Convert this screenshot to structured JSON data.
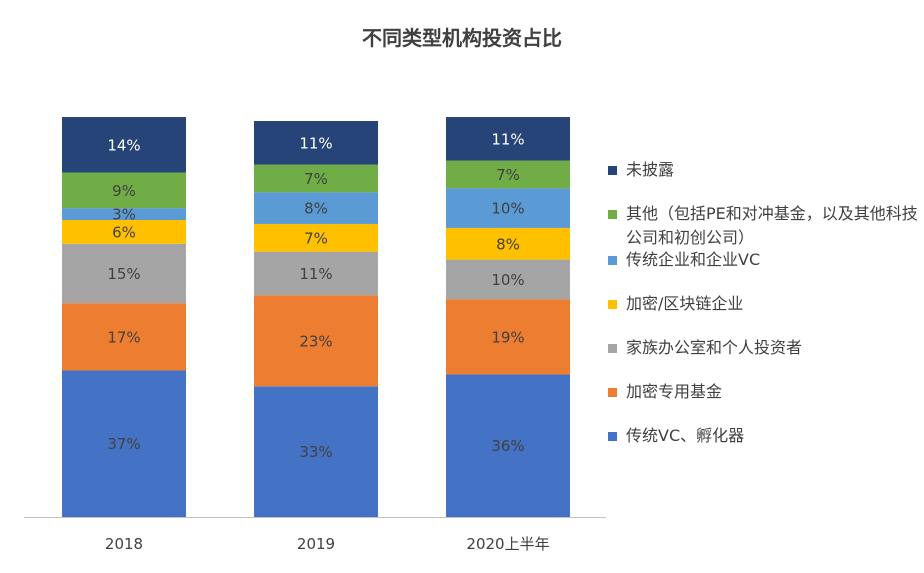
{
  "chart_data": {
    "type": "bar",
    "stacked": true,
    "title": "不同类型机构投资占比",
    "categories": [
      "2018",
      "2019",
      "2020上半年"
    ],
    "series": [
      {
        "name": "传统VC、孵化器",
        "color": "#4472C4",
        "values": [
          37,
          33,
          36
        ],
        "labels": [
          "37%",
          "33%",
          "36%"
        ]
      },
      {
        "name": "加密专用基金",
        "color": "#ED7D31",
        "values": [
          17,
          23,
          19
        ],
        "labels": [
          "17%",
          "23%",
          "19%"
        ]
      },
      {
        "name": "家族办公室和个人投资者",
        "color": "#A5A5A5",
        "values": [
          15,
          11,
          10
        ],
        "labels": [
          "15%",
          "11%",
          "10%"
        ]
      },
      {
        "name": "加密/区块链企业",
        "color": "#FFC000",
        "values": [
          6,
          7,
          8
        ],
        "labels": [
          "6%",
          "7%",
          "8%"
        ]
      },
      {
        "name": "传统企业和企业VC",
        "color": "#5B9BD5",
        "values": [
          3,
          8,
          10
        ],
        "labels": [
          "3%",
          "8%",
          "10%"
        ]
      },
      {
        "name": "其他（包括PE和对冲基金，以及其他科技公司和初创公司）",
        "color": "#70AD47",
        "values": [
          9,
          7,
          7
        ],
        "labels": [
          "9%",
          "7%",
          "7%"
        ]
      },
      {
        "name": "未披露",
        "color": "#264478",
        "values": [
          14,
          11,
          11
        ],
        "labels": [
          "14%",
          "11%",
          "11%"
        ]
      }
    ],
    "legend_position": "right",
    "legend_order": [
      "未披露",
      "其他（包括PE和对冲基金，以及其他科技公司和初创公司）",
      "传统企业和企业VC",
      "加密/区块链企业",
      "家族办公室和个人投资者",
      "加密专用基金",
      "传统VC、孵化器"
    ],
    "grid": false,
    "ylim": [
      0,
      100
    ]
  }
}
